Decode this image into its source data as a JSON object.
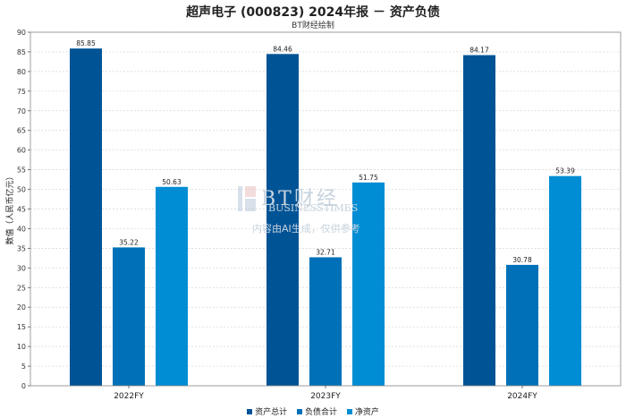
{
  "chart_data": {
    "type": "bar",
    "title": "超声电子 (000823) 2024年报 － 资产负债",
    "subtitle": "BT财经绘制",
    "ylabel": "数值（人民币亿元）",
    "xlabel": "",
    "categories": [
      "2022FY",
      "2023FY",
      "2024FY"
    ],
    "ylim": [
      0,
      90
    ],
    "yticks": [
      0,
      5,
      10,
      15,
      20,
      25,
      30,
      35,
      40,
      45,
      50,
      55,
      60,
      65,
      70,
      75,
      80,
      85,
      90
    ],
    "grid": true,
    "legend_position": "bottom-center",
    "series": [
      {
        "name": "资产总计",
        "color": "#005496",
        "values": [
          85.85,
          84.46,
          84.17
        ]
      },
      {
        "name": "负债合计",
        "color": "#0071b8",
        "values": [
          35.22,
          32.71,
          30.78
        ]
      },
      {
        "name": "净资产",
        "color": "#008dd4",
        "values": [
          50.63,
          51.75,
          53.39
        ]
      }
    ]
  },
  "watermark": {
    "logo": "BT财经",
    "line1": "BUSINESSTIMES",
    "line2": "内容由AI生成，仅供参考"
  }
}
